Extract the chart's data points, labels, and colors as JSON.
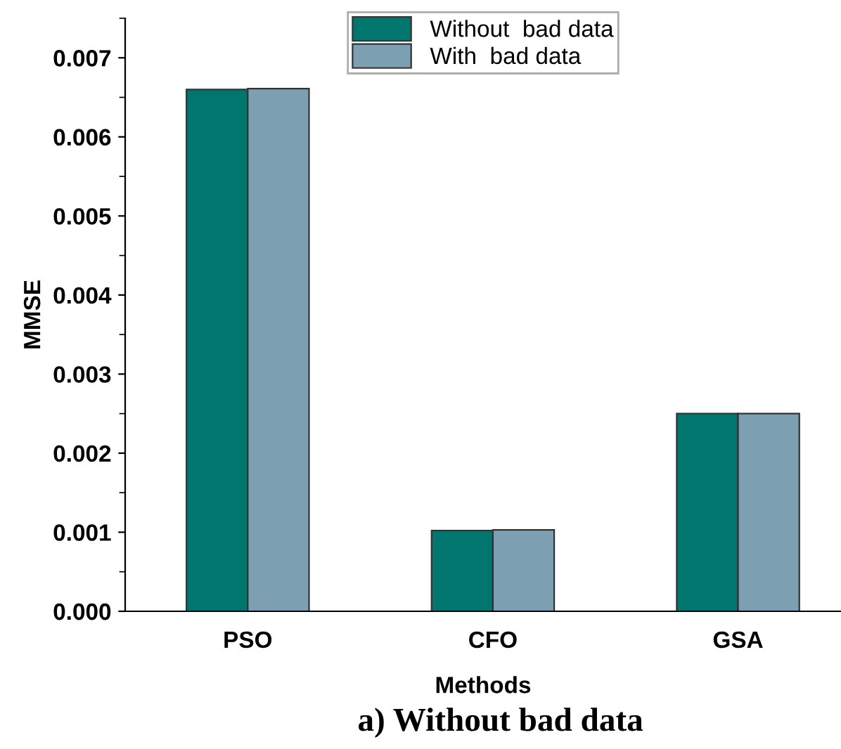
{
  "chart_data": {
    "type": "bar",
    "xlabel": "Methods",
    "ylabel": "MMSE",
    "categories": [
      "PSO",
      "CFO",
      "GSA"
    ],
    "series": [
      {
        "name": "Without  bad data",
        "color": "#00766e",
        "values": [
          0.0066,
          0.00102,
          0.0025
        ]
      },
      {
        "name": "With  bad data",
        "color": "#7d9fb2",
        "values": [
          0.00661,
          0.00103,
          0.0025
        ]
      }
    ],
    "ylim": [
      0,
      0.0075
    ],
    "yticks": [
      {
        "value": 0,
        "label": "0.000"
      },
      0.001,
      0.002,
      0.003,
      0.004,
      0.005,
      0.006,
      0.007
    ],
    "legend": "top",
    "grid": false,
    "annotations": [
      "a) Without bad data"
    ]
  }
}
